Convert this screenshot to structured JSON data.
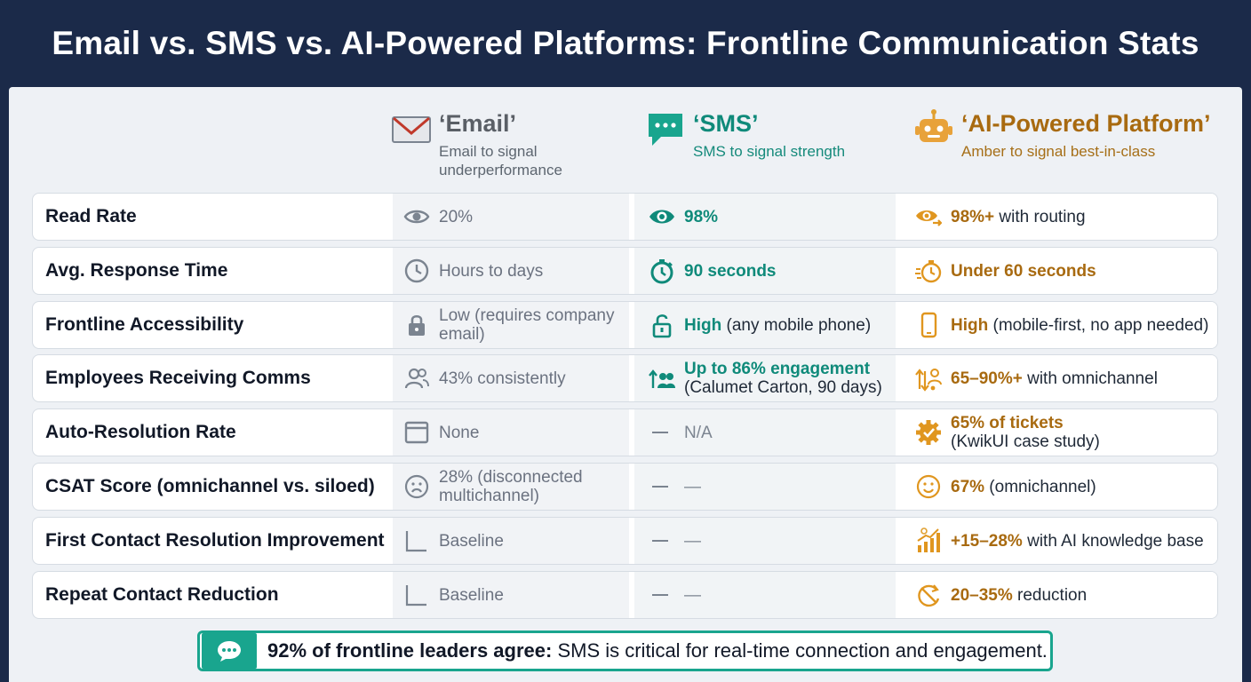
{
  "title": "Email vs. SMS vs. AI-Powered Platforms: Frontline Communication Stats",
  "colors": {
    "header_bg": "#1b2a49",
    "email": "#6b7280",
    "sms": "#0f8a7a",
    "ai": "#a86a10",
    "footer_accent": "#19a58e"
  },
  "columns": {
    "email": {
      "title": "‘Email’",
      "subtitle": "Email to signal underperformance",
      "icon": "envelope-icon"
    },
    "sms": {
      "title": "‘SMS’",
      "subtitle": "SMS to signal strength",
      "icon": "chat-bubble-icon"
    },
    "ai": {
      "title": "‘AI-Powered Platform’",
      "subtitle": "Amber to signal best-in-class",
      "icon": "robot-icon"
    }
  },
  "chart_data": {
    "type": "table",
    "title": "Email vs. SMS vs. AI-Powered Platforms: Frontline Communication Stats",
    "columns": [
      "‘Email’",
      "‘SMS’",
      "‘AI-Powered Platform’"
    ],
    "rows": [
      {
        "label": "Read Rate",
        "email": {
          "icon": "eye-icon",
          "text": "20%"
        },
        "sms": {
          "icon": "eye-icon",
          "bold": "98%",
          "plain": ""
        },
        "ai": {
          "icon": "eye-routing-icon",
          "bold": "98%+",
          "plain": " with routing"
        }
      },
      {
        "label": "Avg. Response Time",
        "email": {
          "icon": "clock-icon",
          "text": "Hours to days"
        },
        "sms": {
          "icon": "stopwatch-icon",
          "bold": "90 seconds",
          "plain": ""
        },
        "ai": {
          "icon": "fast-stopwatch-icon",
          "bold": "Under 60 seconds",
          "plain": ""
        }
      },
      {
        "label": "Frontline Accessibility",
        "email": {
          "icon": "lock-icon",
          "text": "Low (requires company email)"
        },
        "sms": {
          "icon": "unlock-icon",
          "bold": "High",
          "plain": " (any mobile phone)"
        },
        "ai": {
          "icon": "mobile-phone-icon",
          "bold": "High",
          "plain": " (mobile-first, no app needed)"
        }
      },
      {
        "label": "Employees Receiving Comms",
        "email": {
          "icon": "users-icon",
          "text": "43% consistently"
        },
        "sms": {
          "icon": "users-up-icon",
          "bold": "Up to 86% engagement",
          "plain": "(Calumet Carton, 90 days)"
        },
        "ai": {
          "icon": "user-arrows-icon",
          "bold": "65–90%+",
          "plain": " with omnichannel"
        }
      },
      {
        "label": "Auto-Resolution Rate",
        "email": {
          "icon": "window-icon",
          "text": "None"
        },
        "sms": {
          "icon": "dash-icon",
          "text": "N/A"
        },
        "ai": {
          "icon": "gear-check-icon",
          "bold": "65% of tickets",
          "plain": "(KwikUI case study)"
        }
      },
      {
        "label": "CSAT Score (omnichannel vs. siloed)",
        "email": {
          "icon": "sad-face-icon",
          "text": "28% (disconnected multichannel)"
        },
        "sms": {
          "icon": "dash-icon",
          "text": "—"
        },
        "ai": {
          "icon": "smile-face-icon",
          "bold": "67%",
          "plain": " (omnichannel)"
        }
      },
      {
        "label": "First Contact Resolution Improvement",
        "email": {
          "icon": "flat-chart-icon",
          "text": "Baseline"
        },
        "sms": {
          "icon": "dash-icon",
          "text": "—"
        },
        "ai": {
          "icon": "growth-chart-icon",
          "bold": "+15–28%",
          "plain": " with AI knowledge base"
        }
      },
      {
        "label": "Repeat Contact Reduction",
        "email": {
          "icon": "flat-chart-icon",
          "text": "Baseline"
        },
        "sms": {
          "icon": "dash-icon",
          "text": "—"
        },
        "ai": {
          "icon": "reduce-cycle-icon",
          "bold": "20–35%",
          "plain": " reduction"
        }
      }
    ]
  },
  "footer": {
    "icon": "chat-bubble-icon",
    "bold": "92% of frontline leaders agree:",
    "plain": " SMS is critical for real-time connection and engagement."
  }
}
